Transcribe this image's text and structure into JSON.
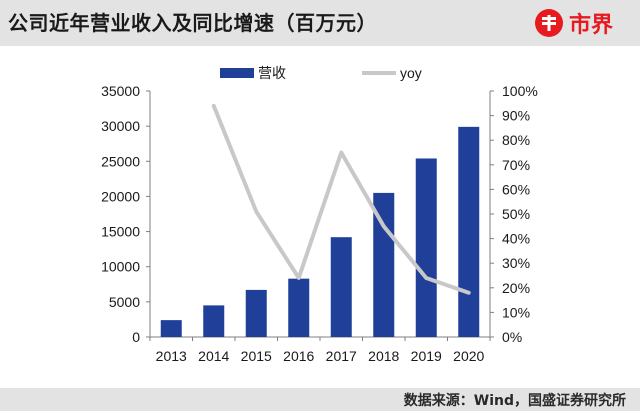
{
  "header": {
    "title": "公司近年营业收入及同比增速（百万元）",
    "logo_text": "市界"
  },
  "footer": {
    "source": "数据来源：Wind，国盛证券研究所"
  },
  "colors": {
    "bar": "#1f3f99",
    "line": "#c8c8c8",
    "brand": "#e8191f",
    "header_bg": "#e3e3e3"
  },
  "chart_data": {
    "type": "bar",
    "categories": [
      "2013",
      "2014",
      "2015",
      "2016",
      "2017",
      "2018",
      "2019",
      "2020"
    ],
    "series": [
      {
        "name": "营收",
        "type": "bar",
        "axis": "left",
        "values": [
          2400,
          4500,
          6700,
          8300,
          14200,
          20500,
          25400,
          29900
        ]
      },
      {
        "name": "yoy",
        "type": "line",
        "axis": "right",
        "values": [
          null,
          0.94,
          0.51,
          0.24,
          0.75,
          0.45,
          0.24,
          0.18
        ]
      }
    ],
    "ylim_left": [
      0,
      35000
    ],
    "yticks_left": [
      "0",
      "5000",
      "10000",
      "15000",
      "20000",
      "25000",
      "30000",
      "35000"
    ],
    "ylim_right": [
      0,
      1
    ],
    "yticks_right": [
      "0%",
      "10%",
      "20%",
      "30%",
      "40%",
      "50%",
      "60%",
      "70%",
      "80%",
      "90%",
      "100%"
    ],
    "legend_position": "top",
    "grid": false
  }
}
